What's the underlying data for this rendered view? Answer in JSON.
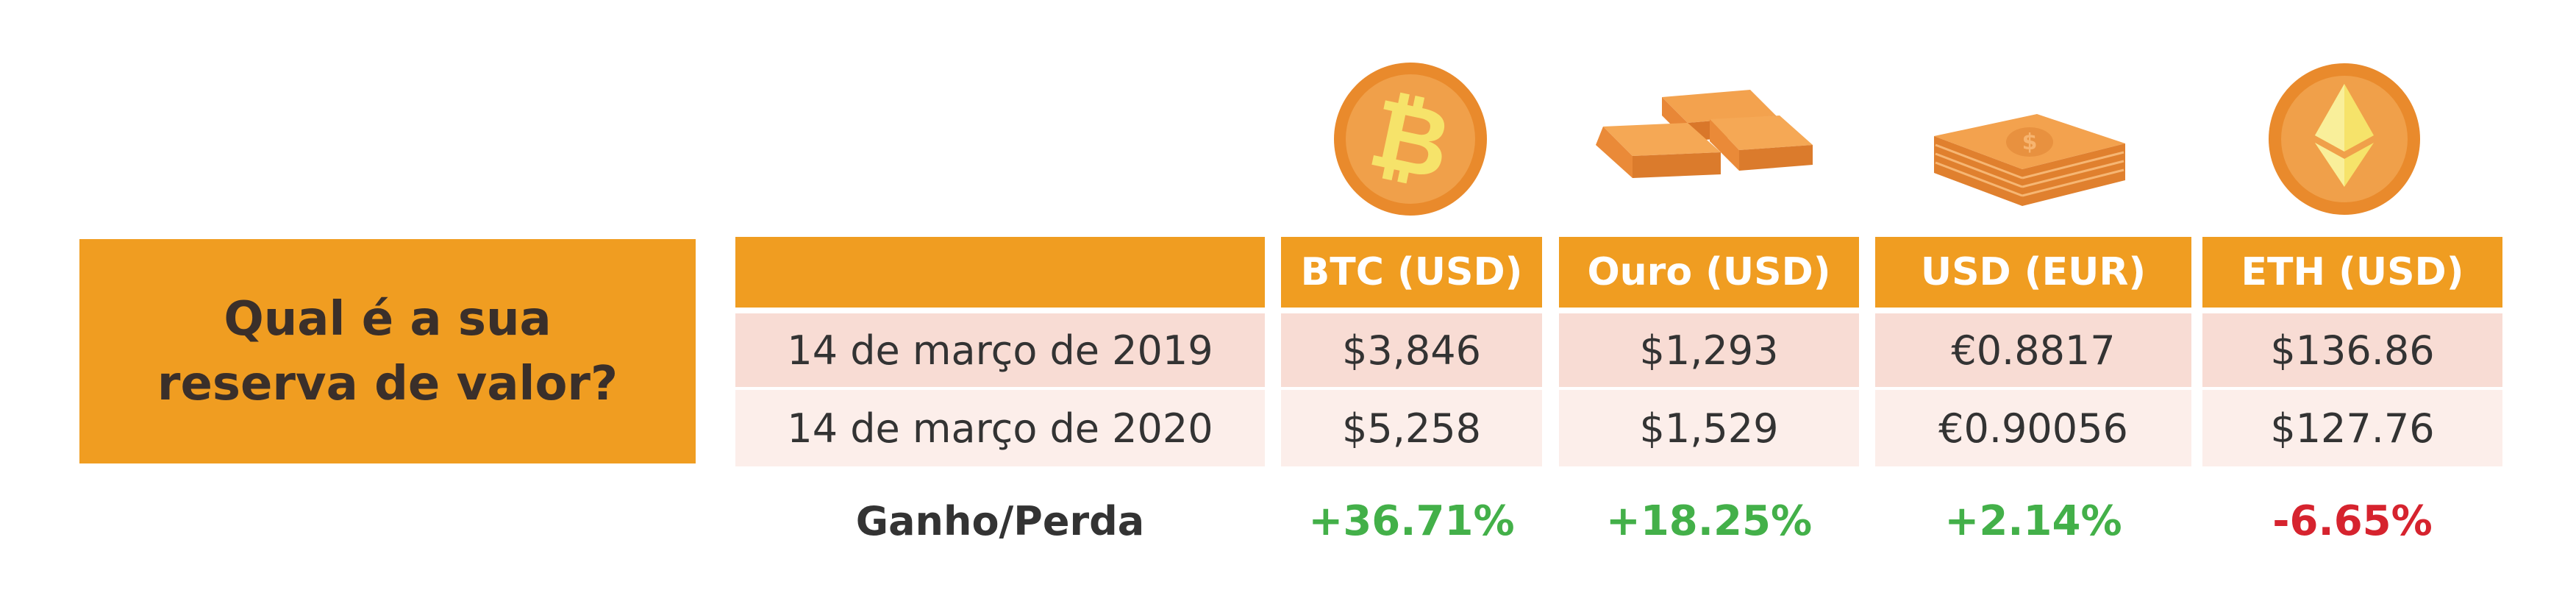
{
  "question": "Qual é a sua reserva de valor?",
  "columns": [
    "BTC (USD)",
    "Ouro (USD)",
    "USD (EUR)",
    "ETH (USD)"
  ],
  "rows": [
    {
      "date": "14 de março de 2019",
      "values": [
        "$3,846",
        "$1,293",
        "€0.8817",
        "$136.86"
      ]
    },
    {
      "date": "14 de março de 2020",
      "values": [
        "$5,258",
        "$1,529",
        "€0.90056",
        "$127.76"
      ]
    }
  ],
  "footer": {
    "label": "Ganho/Perda",
    "values": [
      "+36.71%",
      "+18.25%",
      "+2.14%",
      "-6.65%"
    ]
  },
  "icons": [
    "bitcoin-icon",
    "gold-bars-icon",
    "dollar-stack-icon",
    "ethereum-icon"
  ],
  "colors": {
    "accent": "#F09D21",
    "row_1": "#F8DCD4",
    "row_2": "#FCEEEA",
    "gain": "#43B049",
    "loss": "#D6232E"
  }
}
